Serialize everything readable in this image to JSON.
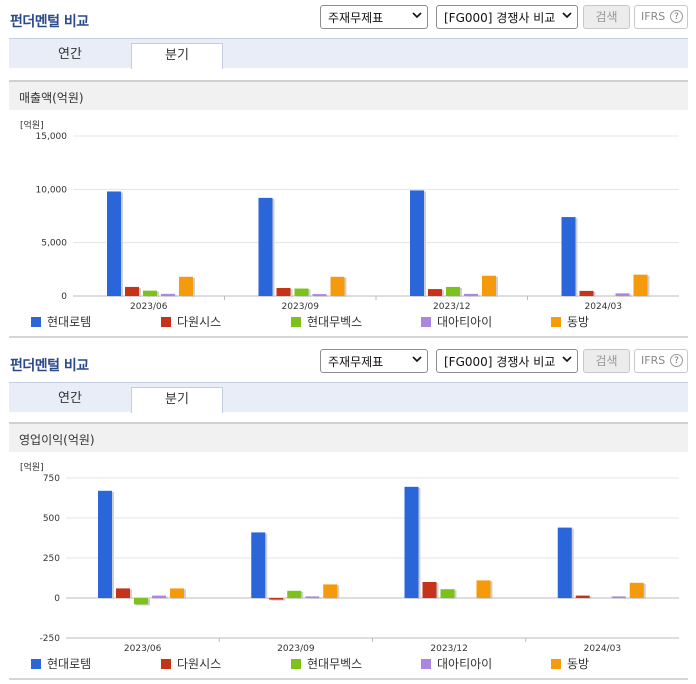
{
  "sections": [
    {
      "title": "펀더멘털 비교",
      "select1": "주재무제표",
      "select2": "[FG000] 경쟁사 비교",
      "search": "검색",
      "ifrs": "IFRS",
      "tabs": [
        "연간",
        "분기"
      ],
      "active_tab": 1,
      "metric": "매출액(억원)",
      "unit": "[억원]"
    },
    {
      "title": "펀더멘털 비교",
      "select1": "주재무제표",
      "select2": "[FG000] 경쟁사 비교",
      "search": "검색",
      "ifrs": "IFRS",
      "tabs": [
        "연간",
        "분기"
      ],
      "active_tab": 1,
      "metric": "영업이익(억원)",
      "unit": "[억원]"
    }
  ],
  "colors": {
    "현대로템": "#2a65d9",
    "다원시스": "#c5341a",
    "현대무벡스": "#7cc21b",
    "대아티아이": "#ac86e0",
    "동방": "#f59a0a"
  },
  "chart_data": [
    {
      "type": "bar",
      "title": "매출액(억원)",
      "ylabel": "[억원]",
      "categories": [
        "2023/06",
        "2023/09",
        "2023/12",
        "2024/03"
      ],
      "ylim": [
        0,
        15000
      ],
      "yticks": [
        0,
        5000,
        10000,
        15000
      ],
      "ytick_labels": [
        "0",
        "5,000",
        "10,000",
        "15,000"
      ],
      "grid": true,
      "legend": "bottom",
      "series": [
        {
          "name": "현대로템",
          "values": [
            9800,
            9200,
            9900,
            7400
          ]
        },
        {
          "name": "다원시스",
          "values": [
            850,
            750,
            650,
            480
          ]
        },
        {
          "name": "현대무벡스",
          "values": [
            500,
            700,
            850,
            0
          ]
        },
        {
          "name": "대아티아이",
          "values": [
            200,
            180,
            200,
            250
          ]
        },
        {
          "name": "동방",
          "values": [
            1800,
            1800,
            1900,
            2000
          ]
        }
      ]
    },
    {
      "type": "bar",
      "title": "영업이익(억원)",
      "ylabel": "[억원]",
      "categories": [
        "2023/06",
        "2023/09",
        "2023/12",
        "2024/03"
      ],
      "ylim": [
        -250,
        750
      ],
      "yticks": [
        -250,
        0,
        250,
        500,
        750
      ],
      "ytick_labels": [
        "-250",
        "0",
        "250",
        "500",
        "750"
      ],
      "grid": true,
      "legend": "bottom",
      "series": [
        {
          "name": "현대로템",
          "values": [
            670,
            410,
            695,
            440
          ]
        },
        {
          "name": "다원시스",
          "values": [
            60,
            -10,
            100,
            15
          ]
        },
        {
          "name": "현대무벡스",
          "values": [
            -40,
            45,
            55,
            0
          ]
        },
        {
          "name": "대아티아이",
          "values": [
            15,
            10,
            0,
            10
          ]
        },
        {
          "name": "동방",
          "values": [
            60,
            85,
            110,
            95
          ]
        }
      ]
    }
  ]
}
